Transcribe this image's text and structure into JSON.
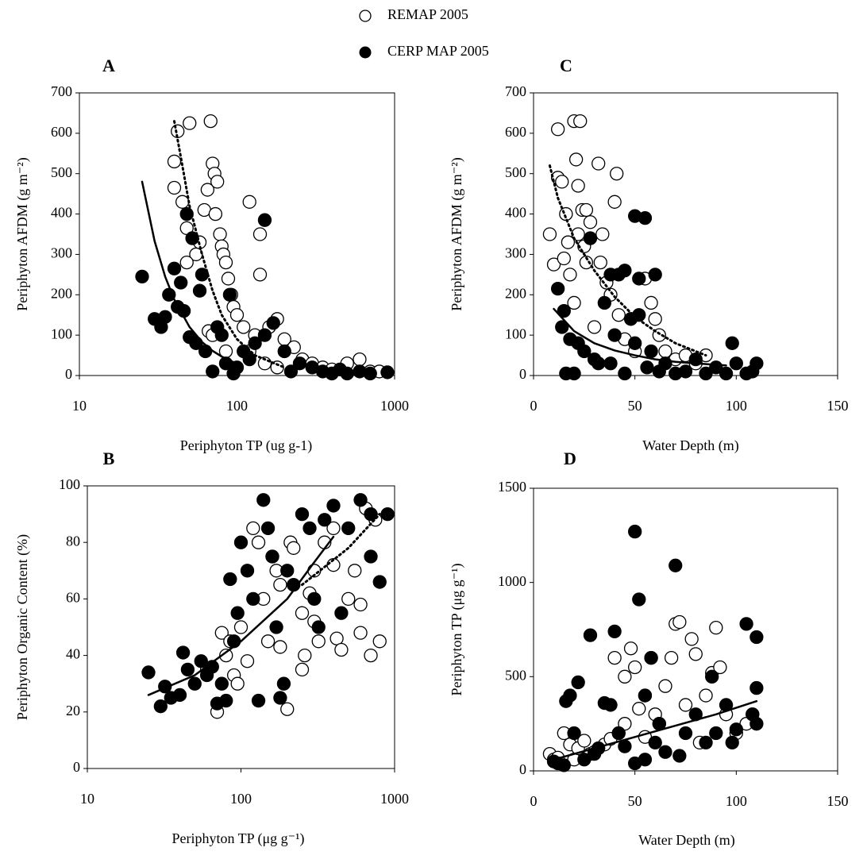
{
  "legend": [
    {
      "name": "REMAP 2005",
      "marker": "open"
    },
    {
      "name": "CERP MAP 2005",
      "marker": "filled"
    }
  ],
  "chart_data": [
    {
      "type": "scatter",
      "title": "A",
      "x_label": "Periphyton TP (ug g-1)",
      "y_label": "Periphyton AFDM (g m⁻²)",
      "xscale": "log",
      "xlim": [
        10,
        1000
      ],
      "xticks": [
        10,
        100,
        1000
      ],
      "ylim": [
        0,
        700
      ],
      "yticks": [
        0,
        100,
        200,
        300,
        400,
        500,
        600,
        700
      ],
      "series": [
        {
          "marker": "open",
          "x": [
            40,
            40,
            42,
            50,
            68,
            45,
            48,
            55,
            58,
            62,
            65,
            70,
            72,
            75,
            73,
            78,
            80,
            82,
            85,
            88,
            92,
            95,
            100,
            120,
            140,
            140,
            110,
            130,
            160,
            180,
            200,
            230,
            260,
            300,
            350,
            400,
            500,
            600,
            700,
            800,
            48,
            66,
            70,
            85,
            120,
            150,
            180
          ],
          "y": [
            530,
            465,
            605,
            625,
            630,
            430,
            365,
            300,
            330,
            410,
            460,
            525,
            500,
            480,
            400,
            350,
            320,
            300,
            280,
            240,
            200,
            170,
            150,
            430,
            350,
            250,
            120,
            100,
            120,
            140,
            90,
            70,
            40,
            30,
            20,
            15,
            30,
            40,
            10,
            10,
            280,
            110,
            100,
            60,
            60,
            30,
            20
          ]
        },
        {
          "marker": "filled",
          "x": [
            25,
            30,
            33,
            35,
            37,
            40,
            42,
            44,
            46,
            48,
            50,
            52,
            55,
            58,
            60,
            63,
            70,
            75,
            80,
            85,
            90,
            95,
            100,
            110,
            120,
            130,
            150,
            150,
            170,
            200,
            220,
            250,
            300,
            350,
            400,
            450,
            500,
            600,
            700,
            900
          ],
          "y": [
            245,
            140,
            120,
            145,
            200,
            265,
            170,
            230,
            160,
            400,
            95,
            340,
            80,
            210,
            250,
            60,
            10,
            120,
            100,
            30,
            200,
            5,
            20,
            60,
            40,
            80,
            385,
            100,
            130,
            60,
            10,
            30,
            20,
            10,
            5,
            15,
            5,
            10,
            5,
            8
          ]
        }
      ],
      "fits": [
        {
          "style": "solid",
          "x": [
            25,
            30,
            35,
            40,
            50,
            60,
            70,
            80,
            90,
            100
          ],
          "y": [
            480,
            333,
            245,
            188,
            120,
            83,
            61,
            47,
            37,
            30
          ]
        },
        {
          "style": "dotted",
          "x": [
            40,
            45,
            50,
            60,
            70,
            80,
            100,
            130,
            200
          ],
          "y": [
            630,
            520,
            420,
            300,
            210,
            150,
            90,
            50,
            20
          ]
        }
      ]
    },
    {
      "type": "scatter",
      "title": "C",
      "x_label": "Water Depth (m)",
      "y_label": "Periphyton AFDM (g m⁻²)",
      "xlim": [
        0,
        150
      ],
      "xticks": [
        0,
        50,
        100,
        150
      ],
      "ylim": [
        0,
        700
      ],
      "yticks": [
        0,
        100,
        200,
        300,
        400,
        500,
        600,
        700
      ],
      "series": [
        {
          "marker": "open",
          "x": [
            8,
            10,
            12,
            12,
            14,
            15,
            16,
            17,
            18,
            20,
            21,
            22,
            23,
            24,
            25,
            26,
            28,
            30,
            32,
            33,
            34,
            36,
            38,
            40,
            41,
            42,
            45,
            50,
            55,
            58,
            60,
            62,
            65,
            70,
            75,
            80,
            85,
            20,
            22,
            26
          ],
          "y": [
            350,
            275,
            490,
            610,
            480,
            290,
            400,
            330,
            250,
            630,
            535,
            470,
            630,
            410,
            320,
            280,
            380,
            120,
            525,
            280,
            350,
            230,
            200,
            430,
            500,
            150,
            90,
            60,
            240,
            180,
            140,
            100,
            60,
            40,
            50,
            30,
            50,
            180,
            350,
            410
          ]
        },
        {
          "marker": "filled",
          "x": [
            12,
            14,
            16,
            18,
            20,
            22,
            25,
            28,
            30,
            32,
            35,
            38,
            40,
            42,
            45,
            48,
            50,
            52,
            55,
            56,
            58,
            60,
            62,
            65,
            70,
            75,
            80,
            85,
            90,
            95,
            98,
            100,
            105,
            110,
            108,
            45,
            38,
            50,
            52,
            15
          ],
          "y": [
            215,
            120,
            5,
            90,
            5,
            80,
            60,
            340,
            40,
            30,
            180,
            250,
            100,
            250,
            260,
            140,
            395,
            240,
            390,
            20,
            60,
            250,
            10,
            30,
            5,
            10,
            40,
            5,
            20,
            5,
            80,
            30,
            5,
            30,
            10,
            5,
            30,
            80,
            150,
            160
          ]
        }
      ],
      "fits": [
        {
          "style": "solid",
          "x": [
            10,
            20,
            30,
            40,
            50,
            60,
            70,
            80,
            95
          ],
          "y": [
            165,
            110,
            80,
            62,
            50,
            40,
            34,
            30,
            25
          ]
        },
        {
          "style": "dotted",
          "x": [
            8,
            12,
            20,
            30,
            40,
            50,
            60,
            70,
            85
          ],
          "y": [
            520,
            440,
            340,
            260,
            195,
            145,
            110,
            80,
            50
          ]
        }
      ]
    },
    {
      "type": "scatter",
      "title": "B",
      "x_label": "Periphyton TP (μg g⁻¹)",
      "y_label": "Periphyton Organic Content (%)",
      "xscale": "log",
      "xlim": [
        10,
        1000
      ],
      "xticks": [
        10,
        100,
        1000
      ],
      "ylim": [
        0,
        100
      ],
      "yticks": [
        0,
        20,
        40,
        60,
        80,
        100
      ],
      "series": [
        {
          "marker": "open",
          "x": [
            60,
            70,
            75,
            80,
            85,
            90,
            95,
            100,
            110,
            120,
            130,
            140,
            150,
            160,
            170,
            180,
            200,
            210,
            220,
            250,
            260,
            280,
            300,
            320,
            350,
            400,
            420,
            450,
            500,
            550,
            600,
            650,
            700,
            750,
            800,
            400,
            300,
            180,
            250,
            600
          ],
          "y": [
            35,
            20,
            48,
            40,
            45,
            33,
            30,
            50,
            38,
            85,
            80,
            60,
            45,
            75,
            70,
            43,
            21,
            80,
            78,
            35,
            40,
            62,
            70,
            45,
            80,
            85,
            46,
            42,
            60,
            70,
            48,
            92,
            40,
            88,
            45,
            72,
            52,
            65,
            55,
            58
          ]
        },
        {
          "marker": "filled",
          "x": [
            25,
            30,
            32,
            35,
            40,
            42,
            45,
            50,
            55,
            60,
            65,
            70,
            75,
            80,
            85,
            90,
            95,
            100,
            110,
            120,
            130,
            140,
            150,
            160,
            170,
            180,
            190,
            200,
            220,
            250,
            280,
            300,
            320,
            350,
            400,
            450,
            500,
            600,
            700,
            800,
            900,
            700
          ],
          "y": [
            34,
            22,
            29,
            25,
            26,
            41,
            35,
            30,
            38,
            33,
            36,
            23,
            30,
            24,
            67,
            45,
            55,
            80,
            70,
            60,
            24,
            95,
            85,
            75,
            50,
            25,
            30,
            70,
            65,
            90,
            85,
            60,
            50,
            88,
            93,
            55,
            85,
            95,
            75,
            66,
            90,
            90
          ]
        }
      ],
      "fits": [
        {
          "style": "solid",
          "x": [
            25,
            50,
            100,
            200,
            300,
            400
          ],
          "y": [
            26,
            33,
            45,
            60,
            73,
            82
          ]
        },
        {
          "style": "dotted",
          "x": [
            250,
            500,
            800
          ],
          "y": [
            65,
            78,
            90
          ]
        }
      ]
    },
    {
      "type": "scatter",
      "title": "D",
      "x_label": "Water Depth (m)",
      "y_label": "Periphyton TP (μg g⁻¹)",
      "xlim": [
        0,
        150
      ],
      "xticks": [
        0,
        50,
        100,
        150
      ],
      "ylim": [
        0,
        1500
      ],
      "yticks": [
        0,
        500,
        1000,
        1500
      ],
      "series": [
        {
          "marker": "open",
          "x": [
            8,
            10,
            12,
            15,
            18,
            20,
            22,
            25,
            28,
            30,
            35,
            38,
            40,
            42,
            45,
            48,
            50,
            52,
            55,
            58,
            60,
            62,
            65,
            68,
            70,
            72,
            75,
            78,
            80,
            82,
            85,
            88,
            90,
            92,
            95,
            100,
            105,
            108,
            55,
            45
          ],
          "y": [
            90,
            60,
            70,
            200,
            140,
            60,
            120,
            160,
            90,
            100,
            140,
            170,
            600,
            200,
            500,
            650,
            550,
            330,
            400,
            600,
            300,
            250,
            450,
            600,
            780,
            790,
            350,
            700,
            620,
            150,
            400,
            520,
            760,
            550,
            300,
            200,
            250,
            300,
            180,
            250
          ]
        },
        {
          "marker": "filled",
          "x": [
            10,
            12,
            15,
            16,
            18,
            20,
            22,
            25,
            28,
            30,
            32,
            35,
            38,
            40,
            42,
            45,
            50,
            52,
            55,
            58,
            60,
            62,
            65,
            70,
            72,
            75,
            80,
            85,
            88,
            90,
            95,
            98,
            100,
            105,
            108,
            110,
            110,
            110,
            50,
            55
          ],
          "y": [
            50,
            40,
            30,
            370,
            400,
            200,
            470,
            60,
            720,
            90,
            120,
            360,
            350,
            740,
            200,
            130,
            1270,
            910,
            400,
            600,
            150,
            250,
            100,
            1090,
            80,
            200,
            300,
            150,
            500,
            200,
            350,
            150,
            220,
            780,
            300,
            710,
            440,
            250,
            40,
            60
          ]
        }
      ],
      "fits": [
        {
          "style": "solid",
          "x": [
            10,
            30,
            50,
            70,
            90,
            110
          ],
          "y": [
            60,
            120,
            180,
            240,
            300,
            370
          ]
        }
      ]
    }
  ]
}
